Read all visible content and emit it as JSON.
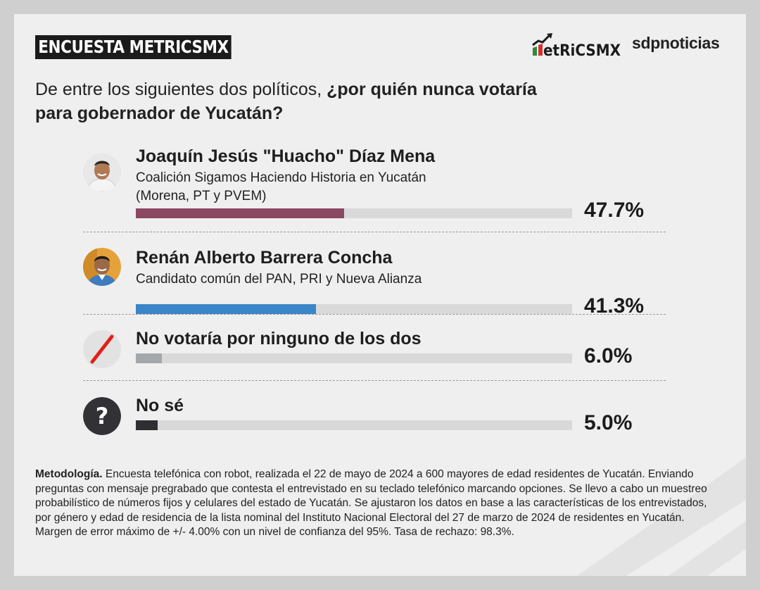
{
  "header": {
    "tag": "ENCUESTA METRICSMX",
    "brand_metrics": "MetRiCSMX",
    "brand_sdp": "sdpnoticias"
  },
  "question": {
    "normal": "De entre los siguientes dos políticos, ",
    "bold_line1": "¿por quién nunca votaría",
    "bold_line2": "para gobernador de Yucatán?"
  },
  "rows": [
    {
      "name": "Joaquín Jesús \"Huacho\" Díaz Mena",
      "sub": [
        "Coalición Sigamos Haciendo Historia en Yucatán",
        "(Morena, PT y PVEM)"
      ],
      "pct": "47.7%",
      "value": 47.7,
      "color": "#8b4861",
      "icon": "candidate-photo"
    },
    {
      "name": "Renán Alberto Barrera Concha",
      "sub": [
        "Candidato común del PAN, PRI y Nueva Alianza"
      ],
      "pct": "41.3%",
      "value": 41.3,
      "color": "#3a86c8",
      "icon": "candidate-photo"
    },
    {
      "name": "No votaría por ninguno de los dos",
      "sub": [],
      "pct": "6.0%",
      "value": 6.0,
      "color": "#a5a8ab",
      "icon": "no-vote-slash-icon"
    },
    {
      "name": "No sé",
      "sub": [],
      "pct": "5.0%",
      "value": 5.0,
      "color": "#2f2e33",
      "icon": "question-mark-icon"
    }
  ],
  "chart_data": {
    "type": "bar",
    "title": "¿por quién nunca votaría para gobernador de Yucatán?",
    "categories": [
      "Joaquín Jesús \"Huacho\" Díaz Mena",
      "Renán Alberto Barrera Concha",
      "No votaría por ninguno de los dos",
      "No sé"
    ],
    "values": [
      47.7,
      41.3,
      6.0,
      5.0
    ],
    "ylim": [
      0,
      100
    ],
    "colors": [
      "#8b4861",
      "#3a86c8",
      "#a5a8ab",
      "#2f2e33"
    ]
  },
  "methodology": {
    "label": "Metodología.",
    "text": " Encuesta telefónica con robot, realizada el 22 de mayo de 2024 a 600 mayores de edad residentes de Yucatán. Enviando preguntas con mensaje pregrabado que contesta el entrevistado en su teclado telefónico marcando opciones. Se llevo a cabo un muestreo probabilístico de números fijos y celulares del estado de Yucatán. Se ajustaron los datos en base a las características de los entrevistados, por género y edad de residencia de la lista nominal del Instituto Nacional Electoral del 27 de marzo de 2024 de residentes en Yucatán. Margen de error máximo de +/- 4.00% con un nivel de confianza del 95%. Tasa de rechazo: 98.3%."
  }
}
